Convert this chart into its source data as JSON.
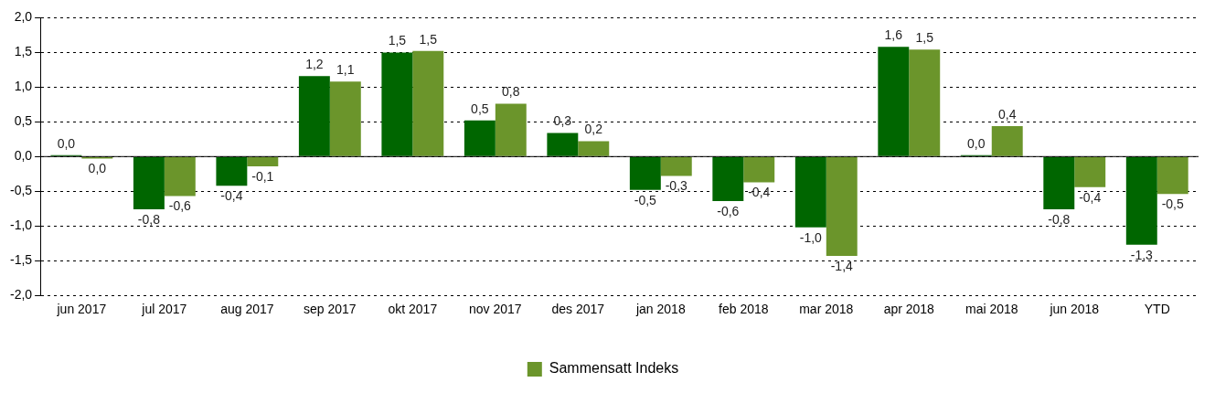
{
  "chart_data": {
    "type": "bar",
    "categories": [
      "jun 2017",
      "jul 2017",
      "aug 2017",
      "sep 2017",
      "okt 2017",
      "nov 2017",
      "des 2017",
      "jan 2018",
      "feb 2018",
      "mar 2018",
      "apr 2018",
      "mai 2018",
      "jun 2018",
      "YTD"
    ],
    "series": [
      {
        "color": "#006600",
        "values": [
          0.02,
          -0.76,
          -0.42,
          1.16,
          1.5,
          0.52,
          0.34,
          -0.48,
          -0.64,
          -1.02,
          1.58,
          0.02,
          -0.76,
          -1.27
        ],
        "value_labels": [
          "0,0",
          "-0,8",
          "-0,4",
          "1,2",
          "1,5",
          "0,5",
          "0,3",
          "-0,5",
          "-0,6",
          "-1,0",
          "1,6",
          "0,0",
          "-0,8",
          "-1,3"
        ]
      },
      {
        "name": "Sammensatt Indeks",
        "color": "#6b952b",
        "values": [
          -0.03,
          -0.57,
          -0.14,
          1.08,
          1.52,
          0.76,
          0.22,
          -0.28,
          -0.37,
          -1.43,
          1.54,
          0.44,
          -0.44,
          -0.54
        ],
        "value_labels": [
          "0,0",
          "-0,6",
          "-0,1",
          "1,1",
          "1,5",
          "0,8",
          "0,2",
          "-0,3",
          "-0,4",
          "-1,4",
          "1,5",
          "0,4",
          "-0,4",
          "-0,5"
        ]
      }
    ],
    "ylim": [
      -2.0,
      2.0
    ],
    "yticks": [
      {
        "value": -2.0,
        "label": "-2,0"
      },
      {
        "value": -1.5,
        "label": "-1,5"
      },
      {
        "value": -1.0,
        "label": "-1,0"
      },
      {
        "value": -0.5,
        "label": "-0,5"
      },
      {
        "value": 0,
        "label": "0,0"
      },
      {
        "value": 0.5,
        "label": "0,5"
      },
      {
        "value": 1.0,
        "label": "1,0"
      },
      {
        "value": 1.5,
        "label": "1,5"
      },
      {
        "value": 2.0,
        "label": "2,0"
      }
    ],
    "grid": "y",
    "legend": "bottom"
  }
}
